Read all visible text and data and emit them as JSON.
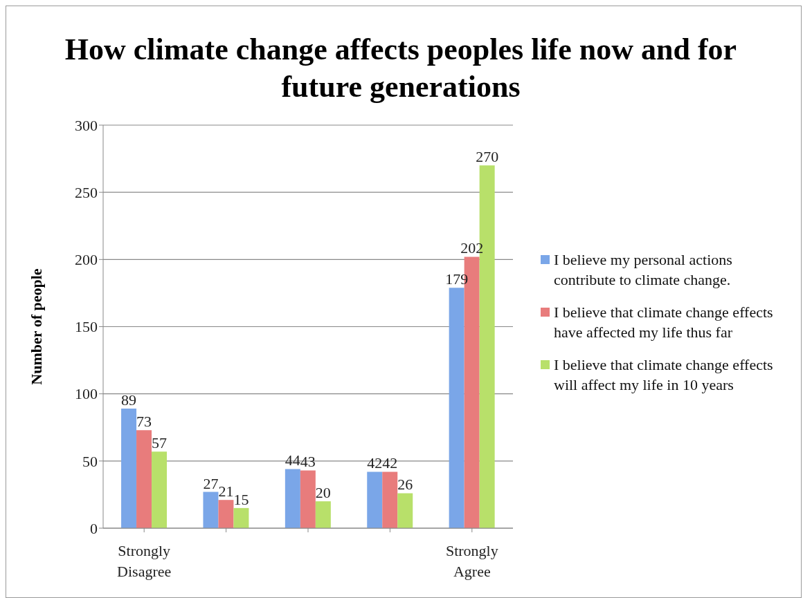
{
  "chart_data": {
    "type": "bar",
    "title": "How climate change affects peoples life now and for future generations",
    "ylabel": "Number of people",
    "categories": [
      "Strongly Disagree",
      null,
      null,
      null,
      "Strongly Agree"
    ],
    "series": [
      {
        "name": "I believe my personal actions contribute to climate change.",
        "color": "#7aa6e8",
        "values": [
          89,
          27,
          44,
          42,
          179
        ]
      },
      {
        "name": "I believe that climate change effects have affected my life thus far",
        "color": "#e87c7c",
        "values": [
          73,
          21,
          43,
          42,
          202
        ]
      },
      {
        "name": "I believe that climate change effects will affect my life in 10 years",
        "color": "#b8e06a",
        "values": [
          57,
          15,
          20,
          26,
          270
        ]
      }
    ],
    "ylim": [
      0,
      300
    ],
    "yticks": [
      0,
      50,
      100,
      150,
      200,
      250,
      300
    ],
    "grid": "y",
    "legend": "right",
    "data_labels": true
  }
}
